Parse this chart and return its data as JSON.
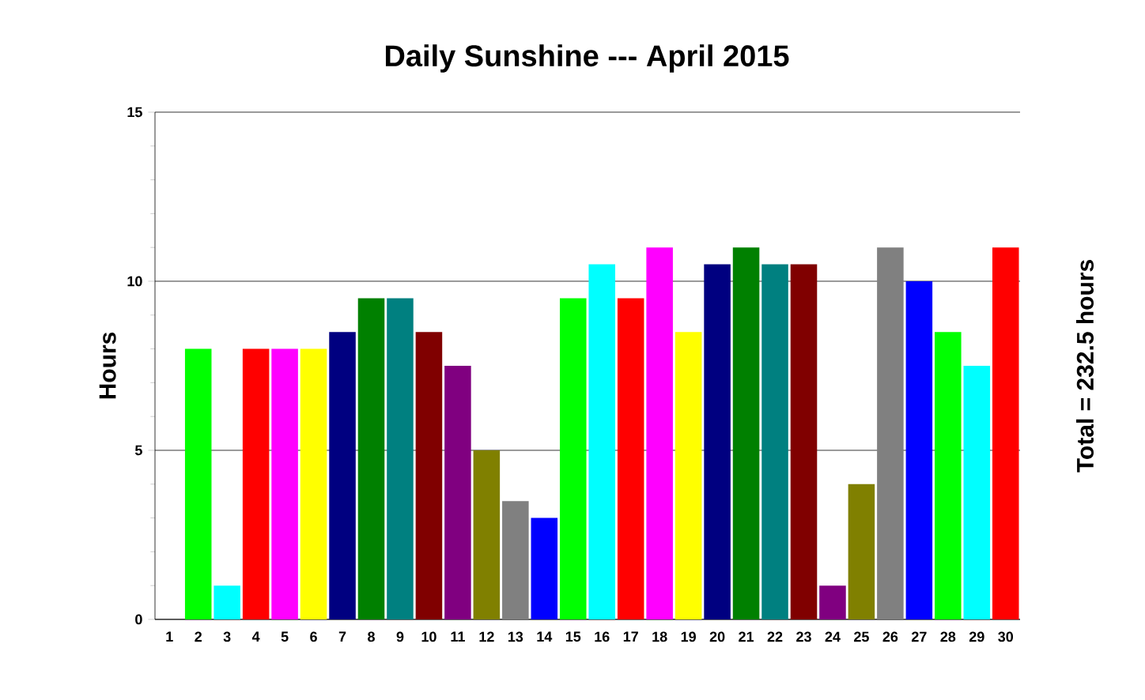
{
  "chart_data": {
    "type": "bar",
    "title": "Daily Sunshine --- April 2015",
    "ylabel": "Hours",
    "annotations": [
      "Total = 232.5 hours"
    ],
    "categories": [
      "1",
      "2",
      "3",
      "4",
      "5",
      "6",
      "7",
      "8",
      "9",
      "10",
      "11",
      "12",
      "13",
      "14",
      "15",
      "16",
      "17",
      "18",
      "19",
      "20",
      "21",
      "22",
      "23",
      "24",
      "25",
      "26",
      "27",
      "28",
      "29",
      "30"
    ],
    "values": [
      0,
      8,
      1,
      8,
      8,
      8,
      8.5,
      9.5,
      9.5,
      8.5,
      7.5,
      5,
      3.5,
      3,
      9.5,
      10.5,
      9.5,
      11,
      8.5,
      10.5,
      11,
      10.5,
      10.5,
      1,
      4,
      11,
      10,
      8.5,
      7.5,
      11
    ],
    "colors": [
      "#0000ff",
      "#00ff00",
      "#00ffff",
      "#ff0000",
      "#ff00ff",
      "#ffff00",
      "#000080",
      "#008000",
      "#008080",
      "#800000",
      "#800080",
      "#808000",
      "#808080",
      "#0000ff",
      "#00ff00",
      "#00ffff",
      "#ff0000",
      "#ff00ff",
      "#ffff00",
      "#000080",
      "#008000",
      "#008080",
      "#800000",
      "#800080",
      "#808000",
      "#808080",
      "#0000ff",
      "#00ff00",
      "#00ffff",
      "#ff0000"
    ],
    "ylim": [
      0,
      15
    ],
    "yticks": [
      0,
      5,
      10,
      15
    ],
    "grid": "y"
  }
}
